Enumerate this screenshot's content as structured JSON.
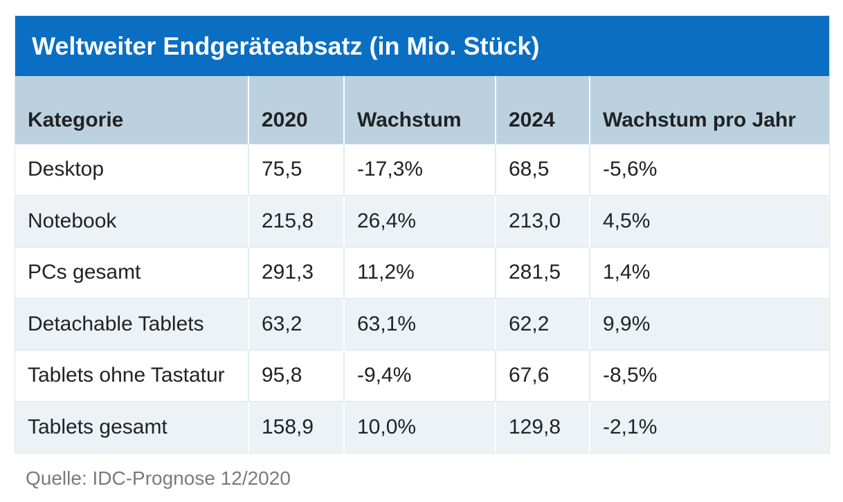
{
  "chart_data": {
    "type": "table",
    "title": "Weltweiter Endgeräteabsatz (in Mio. Stück)",
    "columns": [
      "Kategorie",
      "2020",
      "Wachstum",
      "2024",
      "Wachstum pro Jahr"
    ],
    "rows": [
      [
        "Desktop",
        "75,5",
        "-17,3%",
        "68,5",
        "-5,6%"
      ],
      [
        "Notebook",
        "215,8",
        "26,4%",
        "213,0",
        "4,5%"
      ],
      [
        "PCs gesamt",
        "291,3",
        "11,2%",
        "281,5",
        "1,4%"
      ],
      [
        "Detachable Tablets",
        "63,2",
        "63,1%",
        "62,2",
        "9,9%"
      ],
      [
        "Tablets ohne Tastatur",
        "95,8",
        "-9,4%",
        "67,6",
        "-8,5%"
      ],
      [
        "Tablets gesamt",
        "158,9",
        "10,0%",
        "129,8",
        "-2,1%"
      ]
    ],
    "source": "Quelle: IDC-Prognose 12/2020"
  },
  "colors": {
    "title_background": "#0a6fc2",
    "header_background": "#bcd1e0",
    "row_alt_background": "#edf2f6"
  }
}
